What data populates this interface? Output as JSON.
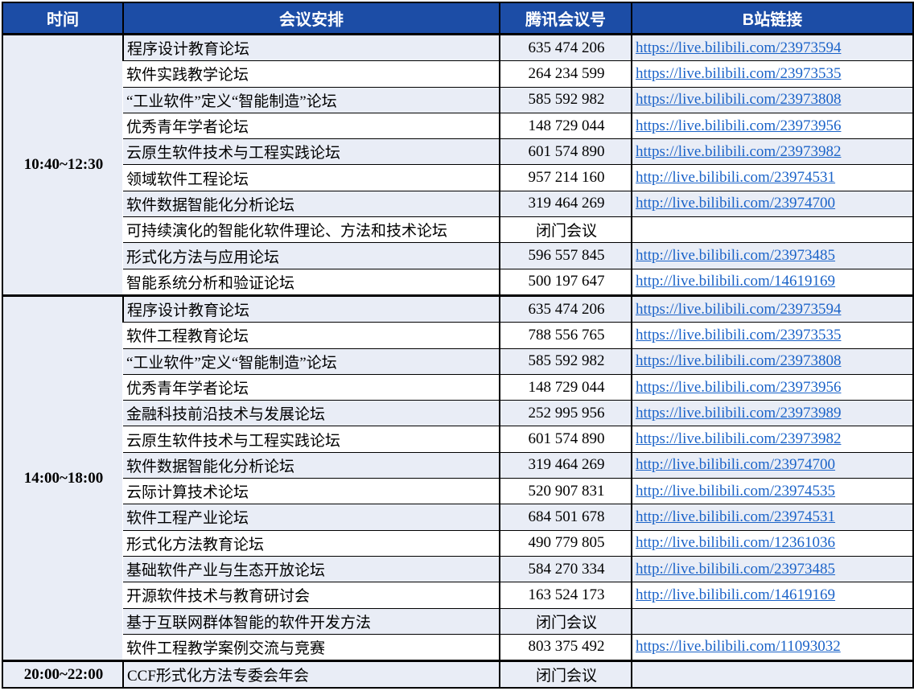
{
  "colors": {
    "header_bg": "#1C4DA6",
    "header_text": "#FFFFFF",
    "light_row_bg": "#E9EDF6",
    "plain_row_bg": "#FFFFFF",
    "link_color": "#1B63C8",
    "border_color": "#000000"
  },
  "table": {
    "headers": [
      "时间",
      "会议安排",
      "腾讯会议号",
      "B站链接"
    ],
    "closed_meeting_label": "闭门会议",
    "sections": [
      {
        "time": "10:40~12:30",
        "rows": [
          {
            "forum": "程序设计教育论坛",
            "meeting_id": "635 474 206",
            "link": "https://live.bilibili.com/23973594"
          },
          {
            "forum": "软件实践教学论坛",
            "meeting_id": "264 234 599",
            "link": "https://live.bilibili.com/23973535"
          },
          {
            "forum": "“工业软件”定义“智能制造”论坛",
            "meeting_id": "585 592 982",
            "link": "https://live.bilibili.com/23973808"
          },
          {
            "forum": "优秀青年学者论坛",
            "meeting_id": "148 729 044",
            "link": "https://live.bilibili.com/23973956"
          },
          {
            "forum": "云原生软件技术与工程实践论坛",
            "meeting_id": "601 574 890",
            "link": "https://live.bilibili.com/23973982"
          },
          {
            "forum": "领域软件工程论坛",
            "meeting_id": "957 214 160",
            "link": "http://live.bilibili.com/23974531"
          },
          {
            "forum": "软件数据智能化分析论坛",
            "meeting_id": "319 464 269",
            "link": "http://live.bilibili.com/23974700"
          },
          {
            "forum": "可持续演化的智能化软件理论、方法和技术论坛",
            "meeting_id": "闭门会议",
            "link": ""
          },
          {
            "forum": "形式化方法与应用论坛",
            "meeting_id": "596 557 845",
            "link": "http://live.bilibili.com/23973485"
          },
          {
            "forum": "智能系统分析和验证论坛",
            "meeting_id": "500 197 647",
            "link": "http://live.bilibili.com/14619169"
          }
        ]
      },
      {
        "time": "14:00~18:00",
        "rows": [
          {
            "forum": "程序设计教育论坛",
            "meeting_id": "635 474 206",
            "link": "https://live.bilibili.com/23973594"
          },
          {
            "forum": "软件工程教育论坛",
            "meeting_id": "788 556 765",
            "link": "https://live.bilibili.com/23973535"
          },
          {
            "forum": "“工业软件”定义“智能制造”论坛",
            "meeting_id": "585 592 982",
            "link": "https://live.bilibili.com/23973808"
          },
          {
            "forum": "优秀青年学者论坛",
            "meeting_id": "148 729 044",
            "link": "https://live.bilibili.com/23973956"
          },
          {
            "forum": "金融科技前沿技术与发展论坛",
            "meeting_id": "252 995 956",
            "link": "https://live.bilibili.com/23973989"
          },
          {
            "forum": "云原生软件技术与工程实践论坛",
            "meeting_id": "601 574 890",
            "link": "https://live.bilibili.com/23973982"
          },
          {
            "forum": "软件数据智能化分析论坛",
            "meeting_id": "319 464 269",
            "link": "http://live.bilibili.com/23974700"
          },
          {
            "forum": "云际计算技术论坛",
            "meeting_id": "520 907 831",
            "link": "http://live.bilibili.com/23974535"
          },
          {
            "forum": "软件工程产业论坛",
            "meeting_id": "684 501 678",
            "link": "http://live.bilibili.com/23974531"
          },
          {
            "forum": "形式化方法教育论坛",
            "meeting_id": "490 779 805",
            "link": "http://live.bilibili.com/12361036"
          },
          {
            "forum": "基础软件产业与生态开放论坛",
            "meeting_id": "584 270 334",
            "link": "http://live.bilibili.com/23973485"
          },
          {
            "forum": "开源软件技术与教育研讨会",
            "meeting_id": "163 524 173",
            "link": "http://live.bilibili.com/14619169"
          },
          {
            "forum": "基于互联网群体智能的软件开发方法",
            "meeting_id": "闭门会议",
            "link": ""
          },
          {
            "forum": "软件工程教学案例交流与竞赛",
            "meeting_id": "803 375 492",
            "link": "https://live.bilibili.com/11093032"
          }
        ]
      },
      {
        "time": "20:00~22:00",
        "rows": [
          {
            "forum": "CCF形式化方法专委会年会",
            "meeting_id": "闭门会议",
            "link": ""
          }
        ]
      }
    ]
  }
}
